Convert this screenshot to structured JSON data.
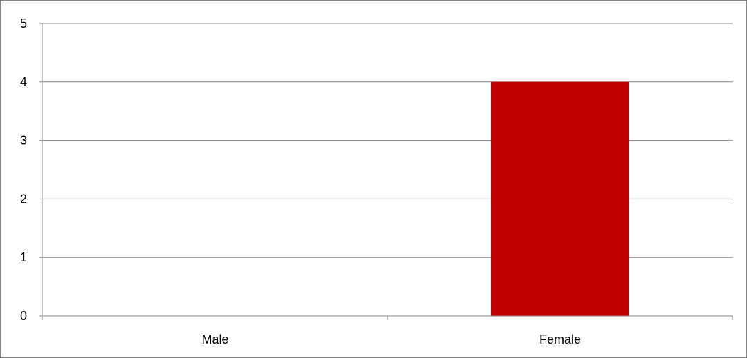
{
  "chart_data": {
    "type": "bar",
    "categories": [
      "Male",
      "Female"
    ],
    "values": [
      0,
      4
    ],
    "ylim": [
      0,
      5
    ],
    "yticks": [
      "0",
      "1",
      "2",
      "3",
      "4",
      "5"
    ],
    "grid": true,
    "bar_color": "#C00000",
    "title": "",
    "xlabel": "",
    "ylabel": ""
  }
}
